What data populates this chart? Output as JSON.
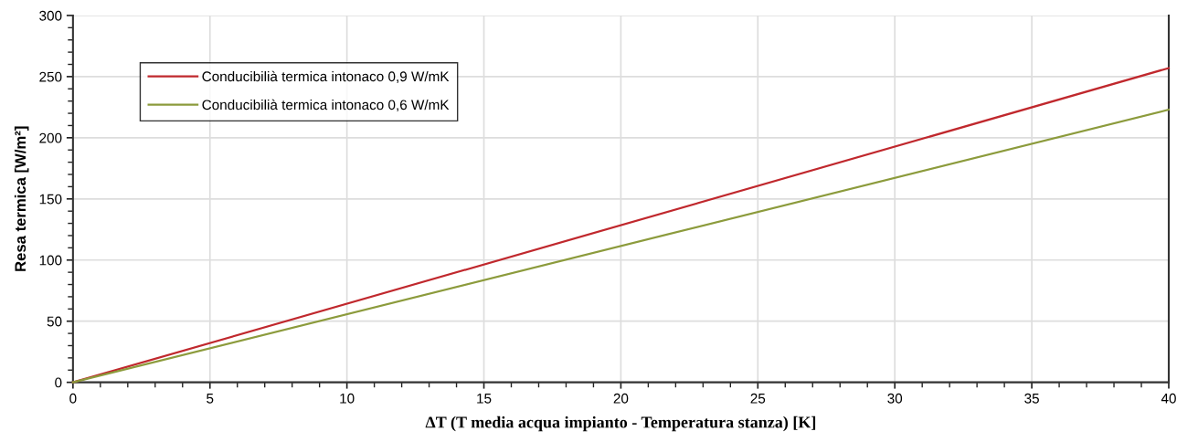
{
  "chart_data": {
    "type": "line",
    "xlabel": "ΔT (T media acqua impianto - Temperatura stanza) [K]",
    "ylabel": "Resa termica [W/m²]",
    "x": [
      0,
      40
    ],
    "series": [
      {
        "name": "Conducibilià termica intonaco 0,9 W/mK",
        "color": "#c0282d",
        "values": [
          0,
          257
        ]
      },
      {
        "name": "Conducibilià termica intonaco 0,6 W/mK",
        "color": "#8c9b3c",
        "values": [
          0,
          223
        ]
      }
    ],
    "xlim": [
      0,
      40
    ],
    "xticks": [
      0,
      5,
      10,
      15,
      20,
      25,
      30,
      35,
      40
    ],
    "ylim": [
      0,
      300
    ],
    "yticks": [
      0,
      50,
      100,
      150,
      200,
      250,
      300
    ],
    "grid": true,
    "legend": "top left",
    "marker": "none",
    "line_style": "solid"
  }
}
